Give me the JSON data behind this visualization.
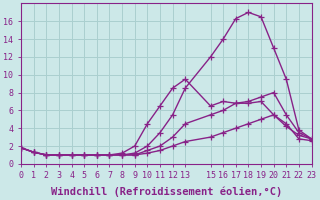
{
  "xlabel": "Windchill (Refroidissement éolien,°C)",
  "bg_color": "#cce8e8",
  "grid_color": "#aacfcf",
  "line_color": "#882288",
  "xlim": [
    0,
    23
  ],
  "ylim": [
    0,
    18
  ],
  "x_ticks": [
    0,
    1,
    2,
    3,
    4,
    5,
    6,
    7,
    8,
    9,
    10,
    11,
    12,
    13,
    15,
    16,
    17,
    18,
    19,
    20,
    21,
    22,
    23
  ],
  "yticks": [
    0,
    2,
    4,
    6,
    8,
    10,
    12,
    14,
    16
  ],
  "series": [
    {
      "x": [
        0,
        1,
        2,
        3,
        4,
        5,
        6,
        7,
        8,
        9,
        10,
        11,
        12,
        13,
        15,
        16,
        17,
        18,
        19,
        20,
        21,
        22,
        23
      ],
      "y": [
        1.8,
        1.3,
        1.0,
        1.0,
        1.0,
        1.0,
        1.0,
        1.0,
        1.0,
        1.0,
        1.2,
        1.5,
        2.0,
        2.5,
        3.0,
        3.5,
        4.0,
        4.5,
        5.0,
        5.5,
        4.5,
        2.8,
        2.6
      ]
    },
    {
      "x": [
        0,
        1,
        2,
        3,
        4,
        5,
        6,
        7,
        8,
        9,
        10,
        11,
        12,
        13,
        15,
        16,
        17,
        18,
        19,
        20,
        21,
        22,
        23
      ],
      "y": [
        1.8,
        1.3,
        1.0,
        1.0,
        1.0,
        1.0,
        1.0,
        1.0,
        1.0,
        1.0,
        1.5,
        2.0,
        3.0,
        4.5,
        5.5,
        6.0,
        6.8,
        7.0,
        7.5,
        8.0,
        5.5,
        3.5,
        2.8
      ]
    },
    {
      "x": [
        0,
        1,
        2,
        3,
        4,
        5,
        6,
        7,
        8,
        9,
        10,
        11,
        12,
        13,
        15,
        16,
        17,
        18,
        19,
        20,
        21,
        22,
        23
      ],
      "y": [
        1.8,
        1.3,
        1.0,
        1.0,
        1.0,
        1.0,
        1.0,
        1.0,
        1.0,
        1.2,
        2.0,
        3.5,
        5.5,
        8.5,
        12.0,
        14.0,
        16.3,
        17.0,
        16.5,
        13.0,
        9.5,
        3.8,
        2.8
      ]
    },
    {
      "x": [
        0,
        1,
        2,
        3,
        4,
        5,
        6,
        7,
        8,
        9,
        10,
        11,
        12,
        13,
        15,
        16,
        17,
        18,
        19,
        20,
        21,
        22,
        23
      ],
      "y": [
        1.8,
        1.3,
        1.0,
        1.0,
        1.0,
        1.0,
        1.0,
        1.0,
        1.2,
        2.0,
        4.5,
        6.5,
        8.5,
        9.5,
        6.5,
        7.0,
        6.8,
        6.8,
        7.0,
        5.5,
        4.2,
        3.2,
        2.8
      ]
    }
  ],
  "marker": "+",
  "markersize": 4,
  "linewidth": 1.0,
  "tick_fontsize": 6,
  "xlabel_fontsize": 7.5
}
